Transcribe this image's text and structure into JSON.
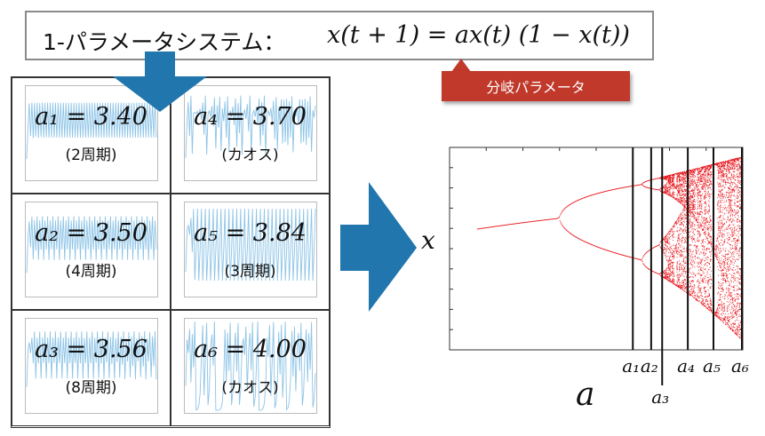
{
  "title": {
    "label": "1-パラメータシステム：",
    "equation": "x(t + 1) = ax(t) (1 − x(t))"
  },
  "callout": {
    "label": "分岐パラメータ"
  },
  "cells": [
    {
      "param": "a₁ = 3.40",
      "period": "(2周期)"
    },
    {
      "param": "a₄ = 3.70",
      "period": "(カオス)"
    },
    {
      "param": "a₂ = 3.50",
      "period": "(4周期)"
    },
    {
      "param": "a₅ = 3.84",
      "period": "(3周期)"
    },
    {
      "param": "a₃ = 3.56",
      "period": "(8周期)"
    },
    {
      "param": "a₆ = 4.00",
      "period": "(カオス)"
    }
  ],
  "bifurcation": {
    "y_label": "x",
    "x_label": "a",
    "markers": [
      "a₁",
      "a₂",
      "a₃",
      "a₄",
      "a₅",
      "a₆"
    ]
  },
  "colors": {
    "arrow": "#2176ae",
    "series": "#8ec4e6",
    "bifurcation": "#e8141a",
    "callout": "#c0392b"
  }
}
